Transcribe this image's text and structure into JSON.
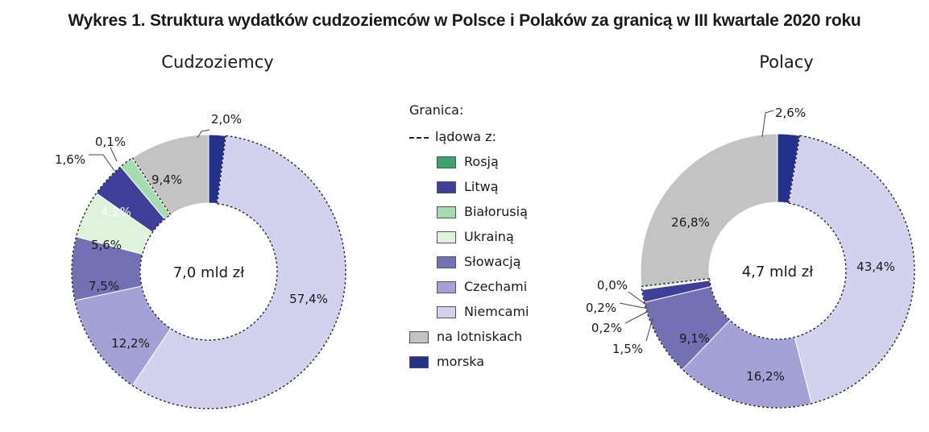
{
  "title": "Wykres 1. Struktura wydatków cudzoziemców w Polsce i Polaków za granicą w III kwartale 2020 roku",
  "colors": {
    "Rosją": "#3aa56d",
    "Litwą": "#3f3f9a",
    "Białorusią": "#a6dcaf",
    "Ukrainą": "#dff3dc",
    "Słowacją": "#7470b4",
    "Czechami": "#a4a1d6",
    "Niemcami": "#d2d1ee",
    "na lotniskach": "#c3c3c3",
    "morska": "#23318a"
  },
  "legend": {
    "group_label": "Granica:",
    "land_label": "lądowa z:",
    "items": [
      "Rosją",
      "Litwą",
      "Białorusią",
      "Ukrainą",
      "Słowacją",
      "Czechami",
      "Niemcami",
      "na lotniskach",
      "morska"
    ]
  },
  "chart_data": [
    {
      "type": "pie",
      "title": "Cudzoziemcy",
      "center_label": "7,0 mld zł",
      "categories": [
        "morska",
        "Niemcami",
        "Czechami",
        "Słowacją",
        "Ukrainą",
        "Litwą",
        "Białorusią",
        "Rosją",
        "na lotniskach"
      ],
      "values": [
        2.0,
        57.4,
        12.2,
        7.5,
        5.6,
        4.2,
        1.6,
        0.1,
        9.4
      ],
      "labels": [
        "2,0%",
        "57,4%",
        "12,2%",
        "7,5%",
        "5,6%",
        "4,2%",
        "1,6%",
        "0,1%",
        "9,4%"
      ]
    },
    {
      "type": "pie",
      "title": "Polacy",
      "center_label": "4,7 mld zł",
      "categories": [
        "morska",
        "Niemcami",
        "Czechami",
        "Słowacją",
        "Litwą",
        "Ukrainą",
        "Białorusią",
        "Rosją",
        "na lotniskach"
      ],
      "values": [
        2.6,
        43.4,
        16.2,
        9.1,
        1.5,
        0.2,
        0.2,
        0.0,
        26.8
      ],
      "labels": [
        "2,6%",
        "43,4%",
        "16,2%",
        "9,1%",
        "1,5%",
        "0,2%",
        "0,2%",
        "0,0%",
        "26,8%"
      ]
    }
  ]
}
